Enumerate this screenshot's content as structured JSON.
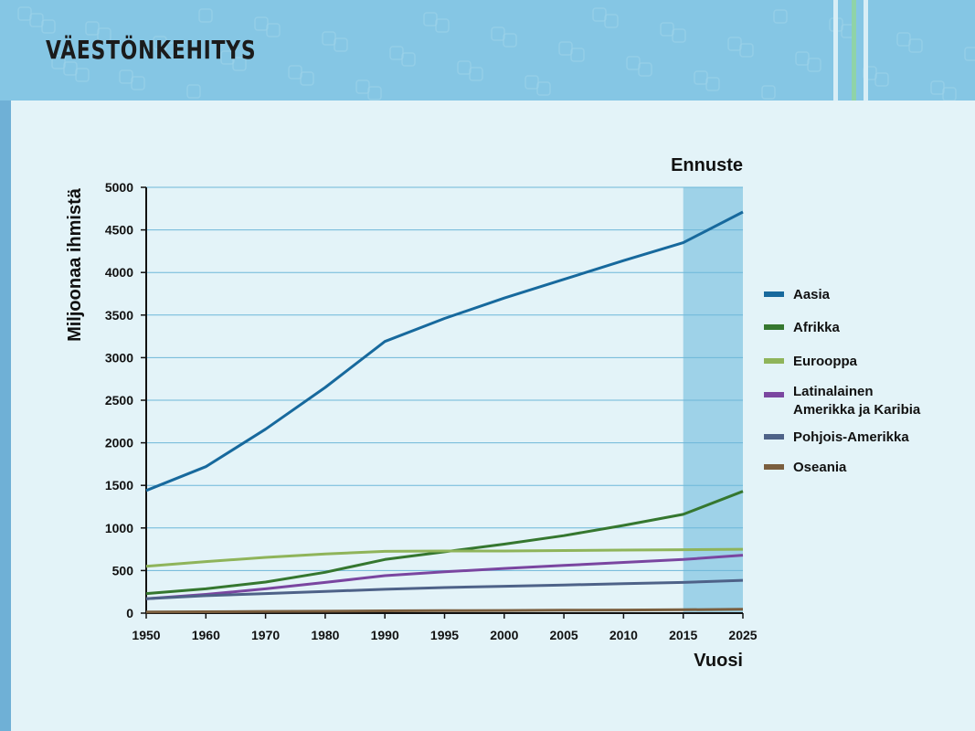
{
  "page": {
    "title": "VÄESTÖNKEHITYS"
  },
  "colors": {
    "banner": "#85c6e4",
    "background": "#e3f3f8",
    "forecast_band": "#9ed2e8",
    "gridline": "#6db7d9"
  },
  "chart_data": {
    "type": "line",
    "title": "",
    "xlabel": "Vuosi",
    "ylabel": "Miljoonaa ihmistä",
    "annotation": "Ennuste",
    "x": [
      "1950",
      "1960",
      "1970",
      "1980",
      "1990",
      "1995",
      "2000",
      "2005",
      "2010",
      "2015",
      "2025"
    ],
    "ylim": [
      0,
      5000
    ],
    "yticks": [
      0,
      500,
      1000,
      1500,
      2000,
      2500,
      3000,
      3500,
      4000,
      4500,
      5000
    ],
    "forecast_range": [
      "2015",
      "2025"
    ],
    "grid": true,
    "legend_position": "right",
    "series": [
      {
        "name": "Aasia",
        "color": "#17699d",
        "values": [
          1440,
          1720,
          2160,
          2650,
          3190,
          3460,
          3700,
          3920,
          4140,
          4350,
          4710
        ]
      },
      {
        "name": "Afrikka",
        "color": "#35772f",
        "values": [
          230,
          285,
          365,
          480,
          630,
          720,
          810,
          910,
          1030,
          1160,
          1430
        ]
      },
      {
        "name": "Eurooppa",
        "color": "#8fb45a",
        "values": [
          550,
          605,
          655,
          695,
          725,
          730,
          730,
          735,
          740,
          745,
          750
        ]
      },
      {
        "name": "Latinalainen Amerikka ja Karibia",
        "color": "#7a46a0",
        "values": [
          170,
          220,
          285,
          360,
          440,
          485,
          525,
          560,
          595,
          630,
          680
        ]
      },
      {
        "name": "Pohjois-Amerikka",
        "color": "#4e6288",
        "values": [
          170,
          205,
          230,
          255,
          280,
          300,
          315,
          330,
          345,
          360,
          385
        ]
      },
      {
        "name": "Oseania",
        "color": "#7a5e3e",
        "values": [
          13,
          16,
          20,
          23,
          27,
          29,
          31,
          34,
          37,
          40,
          45
        ]
      }
    ]
  }
}
